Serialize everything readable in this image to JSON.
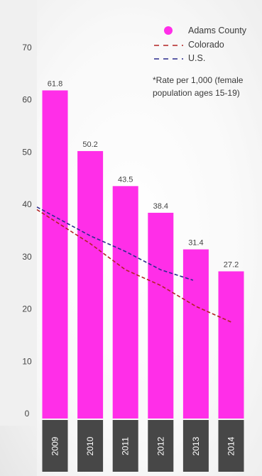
{
  "chart_data": {
    "type": "bar",
    "categories": [
      "2009",
      "2010",
      "2011",
      "2012",
      "2013",
      "2014"
    ],
    "series": [
      {
        "name": "Adams County",
        "type": "bar",
        "color": "#ff2ee8",
        "values": [
          61.8,
          50.2,
          43.5,
          38.4,
          31.4,
          27.2
        ]
      },
      {
        "name": "Colorado",
        "type": "line",
        "style": "dashed",
        "color": "#b22222",
        "values": [
          39.0,
          32.5,
          27.5,
          24.5,
          20.5,
          17.5
        ]
      },
      {
        "name": "U.S.",
        "type": "line",
        "style": "dashed",
        "color": "#2b2b8c",
        "values": [
          39.5,
          34.0,
          31.0,
          27.5,
          25.5,
          null
        ]
      }
    ],
    "data_labels": [
      "61.8",
      "50.2",
      "43.5",
      "38.4",
      "31.4",
      "27.2"
    ],
    "y_ticks": [
      "0",
      "10",
      "20",
      "30",
      "40",
      "50",
      "60",
      "70"
    ],
    "ylim": [
      0,
      70
    ],
    "grid": false,
    "legend_position": "top-right",
    "note_lines": [
      "*Rate per 1,000 (female",
      "population ages 15-19)"
    ]
  }
}
